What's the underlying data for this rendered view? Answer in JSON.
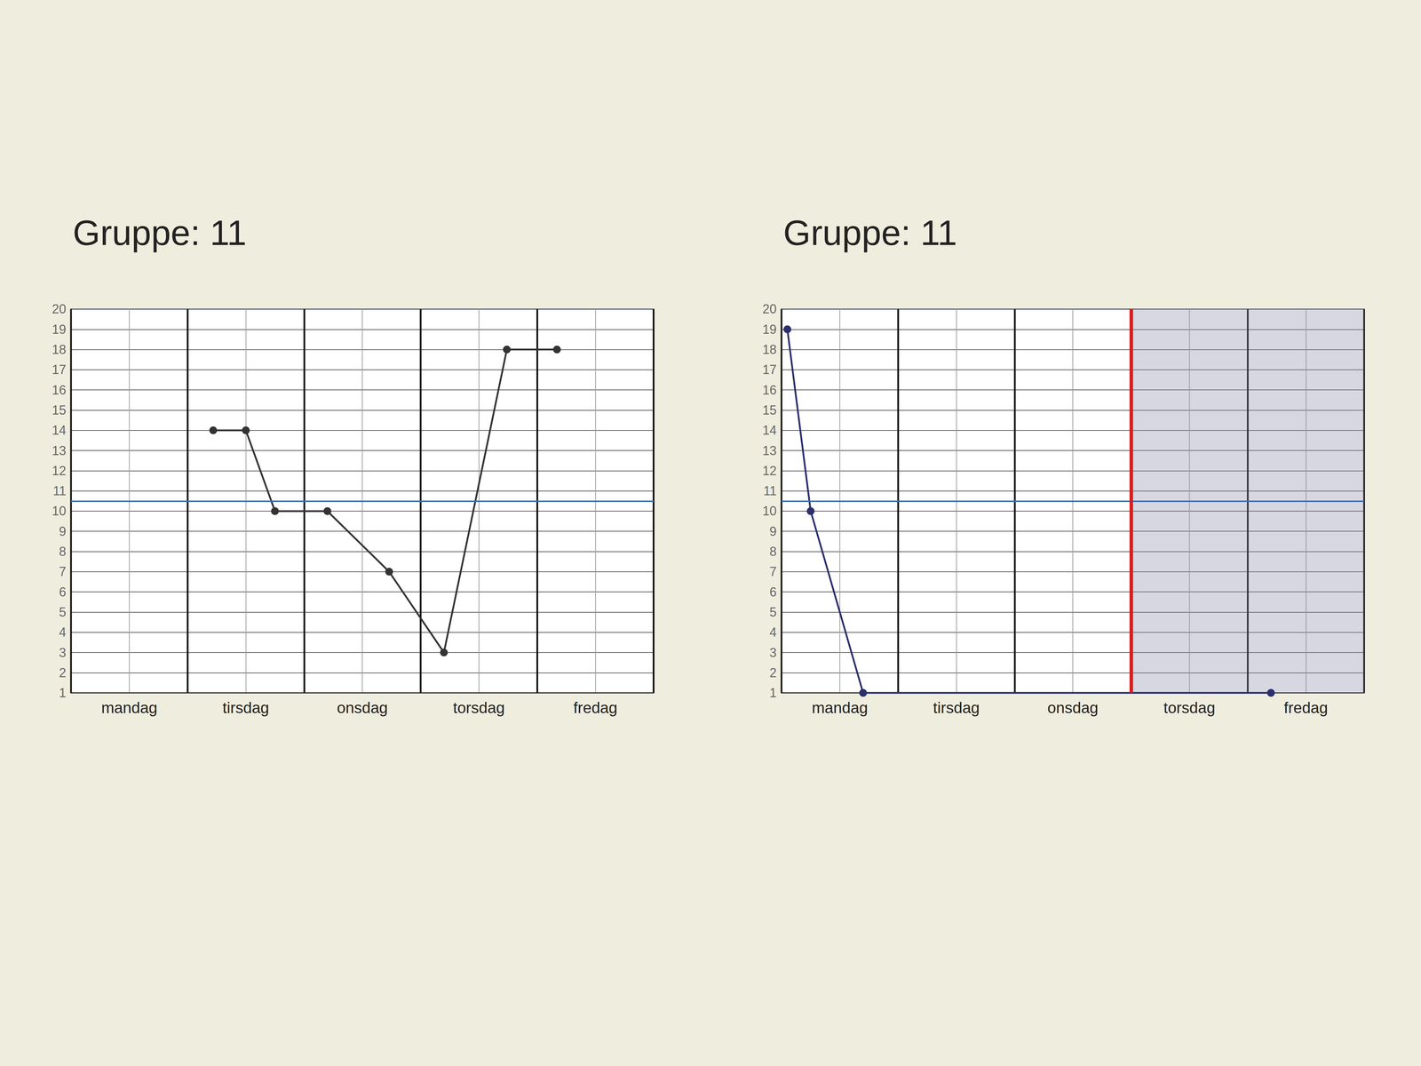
{
  "chart_data": [
    {
      "type": "line",
      "title": "Gruppe: 11",
      "x": [
        1.22,
        1.5,
        1.75,
        2.2,
        2.73,
        3.2,
        3.74,
        4.17
      ],
      "values": [
        14,
        14,
        10,
        10,
        7,
        3,
        18,
        18
      ],
      "color": "#333333",
      "marker": "circle",
      "xlim": [
        0,
        5
      ],
      "xticks": [
        {
          "value": 0.5,
          "label": "mandag"
        },
        {
          "value": 1.5,
          "label": "tirsdag"
        },
        {
          "value": 2.5,
          "label": "onsdag"
        },
        {
          "value": 3.5,
          "label": "torsdag"
        },
        {
          "value": 4.5,
          "label": "fredag"
        }
      ],
      "ylim": [
        1,
        20
      ],
      "yticks": [
        1,
        2,
        3,
        4,
        5,
        6,
        7,
        8,
        9,
        10,
        11,
        12,
        13,
        14,
        15,
        16,
        17,
        18,
        19,
        20
      ],
      "grid": true,
      "reference_line": 10.5
    },
    {
      "type": "line",
      "title": "Gruppe: 11",
      "x": [
        0.05,
        0.25,
        0.7,
        4.2
      ],
      "values": [
        19,
        10,
        1,
        1
      ],
      "color": "#2b2f6b",
      "marker": "circle",
      "xlim": [
        0,
        5
      ],
      "xticks": [
        {
          "value": 0.5,
          "label": "mandag"
        },
        {
          "value": 1.5,
          "label": "tirsdag"
        },
        {
          "value": 2.5,
          "label": "onsdag"
        },
        {
          "value": 3.5,
          "label": "torsdag"
        },
        {
          "value": 4.5,
          "label": "fredag"
        }
      ],
      "ylim": [
        1,
        20
      ],
      "yticks": [
        1,
        2,
        3,
        4,
        5,
        6,
        7,
        8,
        9,
        10,
        11,
        12,
        13,
        14,
        15,
        16,
        17,
        18,
        19,
        20
      ],
      "grid": true,
      "reference_line": 10.5,
      "vline": 3,
      "shaded": [
        3,
        5
      ]
    }
  ]
}
